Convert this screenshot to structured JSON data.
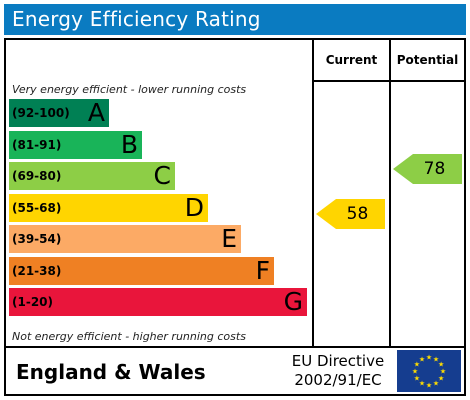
{
  "title": "Energy Efficiency Rating",
  "columns": {
    "current": "Current",
    "potential": "Potential"
  },
  "notes": {
    "top": "Very energy efficient - lower running costs",
    "bottom": "Not energy efficient - higher running costs"
  },
  "footer": {
    "country": "England & Wales",
    "directive_line1": "EU Directive",
    "directive_line2": "2002/91/EC"
  },
  "chart_data": {
    "type": "bar",
    "bands": [
      {
        "letter": "A",
        "range": "(92-100)",
        "color": "#008054"
      },
      {
        "letter": "B",
        "range": "(81-91)",
        "color": "#19b459"
      },
      {
        "letter": "C",
        "range": "(69-80)",
        "color": "#8dce46"
      },
      {
        "letter": "D",
        "range": "(55-68)",
        "color": "#ffd500"
      },
      {
        "letter": "E",
        "range": "(39-54)",
        "color": "#fcaa65"
      },
      {
        "letter": "F",
        "range": "(21-38)",
        "color": "#ef8023"
      },
      {
        "letter": "G",
        "range": "(1-20)",
        "color": "#e9153b"
      }
    ],
    "current": {
      "value": 58,
      "band": "D",
      "color": "#ffd500"
    },
    "potential": {
      "value": 78,
      "band": "C",
      "color": "#8dce46"
    }
  },
  "colors": {
    "title_bar": "#0a7bc1",
    "eu_flag": "#153d8f",
    "eu_stars": "#ffdd00"
  }
}
